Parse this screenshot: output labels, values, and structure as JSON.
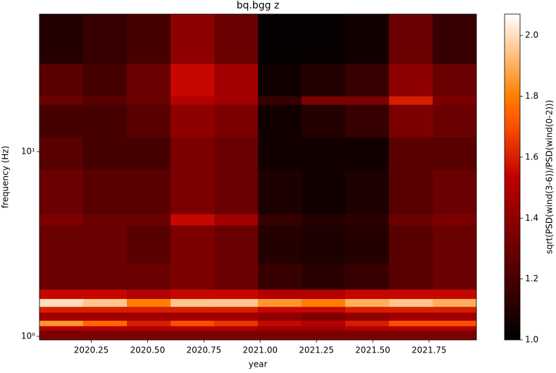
{
  "chart_data": {
    "type": "heatmap",
    "title": "bq.bgg z",
    "xlabel": "year",
    "ylabel": "frequency (Hz)",
    "colorbar_label": "sqrt(PSD(wind(3-6))/PSD(wind(0-2)))",
    "colormap": "gist_heat",
    "yscale": "log",
    "x_edges": [
      2020.02,
      2020.214,
      2020.408,
      2020.602,
      2020.796,
      2020.99,
      2021.184,
      2021.378,
      2021.572,
      2021.766,
      2021.96
    ],
    "y_edges": [
      0.957,
      1.08,
      1.14,
      1.22,
      1.35,
      1.45,
      1.6,
      1.8,
      2.5,
      4,
      4.6,
      8,
      12,
      18,
      20,
      30,
      55.5
    ],
    "z": [
      [
        1.35,
        1.35,
        1.35,
        1.35,
        1.35,
        1.35,
        1.35,
        1.35,
        1.35,
        1.35
      ],
      [
        1.5,
        1.5,
        1.5,
        1.5,
        1.5,
        1.45,
        1.45,
        1.5,
        1.5,
        1.5
      ],
      [
        1.85,
        1.75,
        1.6,
        1.7,
        1.65,
        1.55,
        1.5,
        1.6,
        1.7,
        1.7
      ],
      [
        1.45,
        1.45,
        1.45,
        1.45,
        1.45,
        1.4,
        1.35,
        1.4,
        1.45,
        1.45
      ],
      [
        1.6,
        1.6,
        1.6,
        1.6,
        1.6,
        1.55,
        1.55,
        1.6,
        1.6,
        1.6
      ],
      [
        2.0,
        1.95,
        1.8,
        1.95,
        1.95,
        1.85,
        1.8,
        1.9,
        1.95,
        1.9
      ],
      [
        1.55,
        1.55,
        1.5,
        1.55,
        1.55,
        1.5,
        1.5,
        1.55,
        1.55,
        1.55
      ],
      [
        1.3,
        1.3,
        1.3,
        1.35,
        1.3,
        1.15,
        1.12,
        1.15,
        1.25,
        1.3
      ],
      [
        1.3,
        1.3,
        1.25,
        1.35,
        1.3,
        1.1,
        1.08,
        1.1,
        1.25,
        1.3
      ],
      [
        1.35,
        1.3,
        1.3,
        1.55,
        1.45,
        1.15,
        1.1,
        1.12,
        1.3,
        1.35
      ],
      [
        1.3,
        1.25,
        1.25,
        1.35,
        1.3,
        1.08,
        1.05,
        1.08,
        1.25,
        1.3
      ],
      [
        1.25,
        1.2,
        1.2,
        1.35,
        1.3,
        1.05,
        1.05,
        1.05,
        1.25,
        1.25
      ],
      [
        1.2,
        1.2,
        1.25,
        1.4,
        1.35,
        1.05,
        1.1,
        1.15,
        1.35,
        1.3
      ],
      [
        1.3,
        1.25,
        1.3,
        1.5,
        1.45,
        1.15,
        1.35,
        1.35,
        1.6,
        1.35
      ],
      [
        1.25,
        1.2,
        1.3,
        1.55,
        1.45,
        1.05,
        1.1,
        1.15,
        1.4,
        1.3
      ],
      [
        1.1,
        1.15,
        1.2,
        1.4,
        1.3,
        1.02,
        1.02,
        1.05,
        1.3,
        1.15
      ]
    ],
    "xlim": [
      2020.02,
      2021.96
    ],
    "xticks": [
      2020.25,
      {
        "value": 2020.5,
        "label": "2020.50"
      },
      2020.75,
      {
        "value": 2021.0,
        "label": "2021.00"
      },
      2021.25,
      {
        "value": 2021.5,
        "label": "2021.50"
      },
      2021.75
    ],
    "ylim": [
      0.957,
      55.5
    ],
    "yticks": [
      {
        "value": 1,
        "label": "10⁰"
      },
      {
        "value": 10,
        "label": "10¹"
      }
    ],
    "clim": [
      1.0,
      2.07
    ],
    "cticks": [
      {
        "value": 1.0,
        "label": "1.0"
      },
      1.2,
      1.4,
      1.6,
      1.8,
      {
        "value": 2.0,
        "label": "2.0"
      }
    ]
  }
}
